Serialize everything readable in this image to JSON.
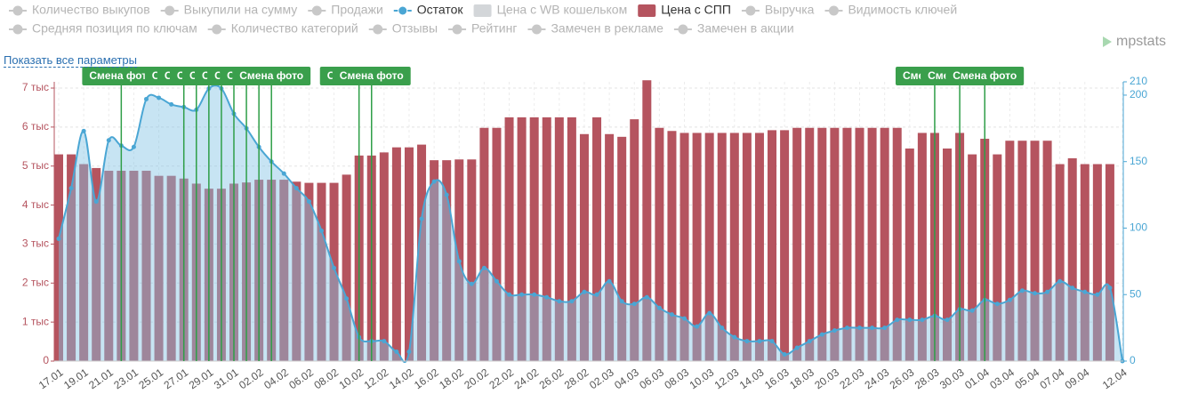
{
  "show_params": "Показать все параметры",
  "logo": "mpstats",
  "chart_data": {
    "type": "bar",
    "legend": [
      {
        "name": "Количество выкупов",
        "marker": "line",
        "color": "#c8c8c8",
        "active": false
      },
      {
        "name": "Выкупили на сумму",
        "marker": "line",
        "color": "#c8c8c8",
        "active": false
      },
      {
        "name": "Продажи",
        "marker": "line",
        "color": "#c8c8c8",
        "active": false
      },
      {
        "name": "Остаток",
        "marker": "line",
        "color": "#4aa6d4",
        "active": true
      },
      {
        "name": "Цена с WB кошельком",
        "marker": "rect",
        "color": "#d3d6d9",
        "active": false
      },
      {
        "name": "Цена с СПП",
        "marker": "rect",
        "color": "#b5545f",
        "active": true
      },
      {
        "name": "Выручка",
        "marker": "line",
        "color": "#c8c8c8",
        "active": false
      },
      {
        "name": "Видимость ключей",
        "marker": "line",
        "color": "#c8c8c8",
        "active": false
      },
      {
        "name": "Средняя позиция по ключам",
        "marker": "line",
        "color": "#c8c8c8",
        "active": false
      },
      {
        "name": "Количество категорий",
        "marker": "line",
        "color": "#c8c8c8",
        "active": false
      },
      {
        "name": "Отзывы",
        "marker": "line",
        "color": "#c8c8c8",
        "active": false
      },
      {
        "name": "Рейтинг",
        "marker": "line",
        "color": "#c8c8c8",
        "active": false
      },
      {
        "name": "Замечен в рекламе",
        "marker": "line",
        "color": "#c8c8c8",
        "active": false
      },
      {
        "name": "Замечен в акции",
        "marker": "line",
        "color": "#c8c8c8",
        "active": false
      }
    ],
    "categories": [
      "17.01",
      null,
      "19.01",
      null,
      "21.01",
      null,
      "23.01",
      null,
      "25.01",
      null,
      "27.01",
      null,
      "29.01",
      null,
      "31.01",
      null,
      "02.02",
      null,
      "04.02",
      null,
      "06.02",
      null,
      "08.02",
      null,
      "10.02",
      null,
      "12.02",
      null,
      "14.02",
      null,
      "16.02",
      null,
      "18.02",
      null,
      "20.02",
      null,
      "22.02",
      null,
      "24.02",
      null,
      "26.02",
      null,
      "28.02",
      null,
      "02.03",
      null,
      "04.03",
      null,
      "06.03",
      null,
      "08.03",
      null,
      "10.03",
      null,
      "12.03",
      null,
      "14.03",
      null,
      "16.03",
      null,
      "18.03",
      null,
      "20.03",
      null,
      "22.03",
      null,
      "24.03",
      null,
      "26.03",
      null,
      "28.03",
      null,
      "30.03",
      null,
      "01.04",
      null,
      "03.04",
      null,
      "05.04",
      null,
      "07.04",
      null,
      "09.04",
      null,
      null,
      "12.04"
    ],
    "series": [
      {
        "legend": 5,
        "type": "bar",
        "color": "#b5545f",
        "values": [
          5300,
          5300,
          5050,
          4950,
          4880,
          4880,
          4880,
          4880,
          4750,
          4750,
          4680,
          4550,
          4420,
          4420,
          4550,
          4580,
          4650,
          4650,
          4650,
          4600,
          4570,
          4570,
          4570,
          4780,
          5270,
          5270,
          5350,
          5480,
          5480,
          5550,
          5150,
          5150,
          5170,
          5170,
          5980,
          5980,
          6250,
          6250,
          6250,
          6250,
          6250,
          6250,
          5820,
          6250,
          5820,
          5750,
          6200,
          7200,
          5980,
          5900,
          5850,
          5850,
          5850,
          5850,
          5850,
          5850,
          5850,
          5920,
          5920,
          5980,
          5980,
          5980,
          5980,
          5980,
          5980,
          5980,
          5980,
          5980,
          5450,
          5850,
          5850,
          5450,
          5850,
          5300,
          5700,
          5300,
          5650,
          5650,
          5650,
          5650,
          5050,
          5200,
          5050,
          5050,
          5050,
          null
        ]
      },
      {
        "legend": 3,
        "type": "line",
        "axis": "y2",
        "color": "#4aa6d4",
        "values": [
          92,
          130,
          173,
          120,
          166,
          162,
          161,
          197,
          198,
          193,
          191,
          189,
          205,
          205,
          186,
          175,
          161,
          150,
          141,
          130,
          120,
          98,
          70,
          47,
          18,
          15,
          15,
          7,
          7,
          107,
          135,
          125,
          75,
          58,
          70,
          60,
          50,
          50,
          50,
          48,
          45,
          45,
          52,
          50,
          60,
          45,
          43,
          48,
          40,
          35,
          32,
          26,
          36,
          25,
          18,
          15,
          15,
          15,
          5,
          10,
          15,
          20,
          23,
          25,
          25,
          25,
          25,
          31,
          31,
          31,
          34,
          31,
          39,
          38,
          46,
          43,
          46,
          53,
          51,
          52,
          60,
          55,
          52,
          50,
          55,
          0
        ]
      }
    ],
    "ylim": [
      0,
      7160
    ],
    "yticks": [
      0,
      {
        "value": 1000,
        "label": "1 тыс"
      },
      {
        "value": 2000,
        "label": "2 тыс"
      },
      {
        "value": 3000,
        "label": "3 тыс"
      },
      {
        "value": 4000,
        "label": "4 тыс"
      },
      {
        "value": 5000,
        "label": "5 тыс"
      },
      {
        "value": 6000,
        "label": "6 тыс"
      },
      {
        "value": 7000,
        "label": "7 тыс"
      }
    ],
    "y2lim": [
      0,
      210
    ],
    "y2ticks": [
      0,
      50,
      100,
      150,
      200,
      210
    ],
    "grid": true,
    "annotations": [
      {
        "index": 5,
        "label": "Смена фото"
      },
      {
        "index": 10,
        "label": "Смена фото"
      },
      {
        "index": 11,
        "label": "Смена фото"
      },
      {
        "index": 12,
        "label": "Смена фото"
      },
      {
        "index": 13,
        "label": "Смена фото"
      },
      {
        "index": 14,
        "label": "Смена фото"
      },
      {
        "index": 15,
        "label": "Смена фото"
      },
      {
        "index": 16,
        "label": "Смена фото"
      },
      {
        "index": 17,
        "label": "Смена фото"
      },
      {
        "index": 24,
        "label": "Смена фото"
      },
      {
        "index": 25,
        "label": "Смена фото"
      },
      {
        "index": 70,
        "label": "Смена фото"
      },
      {
        "index": 72,
        "label": "Смена фото"
      },
      {
        "index": 74,
        "label": "Смена фото"
      }
    ]
  }
}
